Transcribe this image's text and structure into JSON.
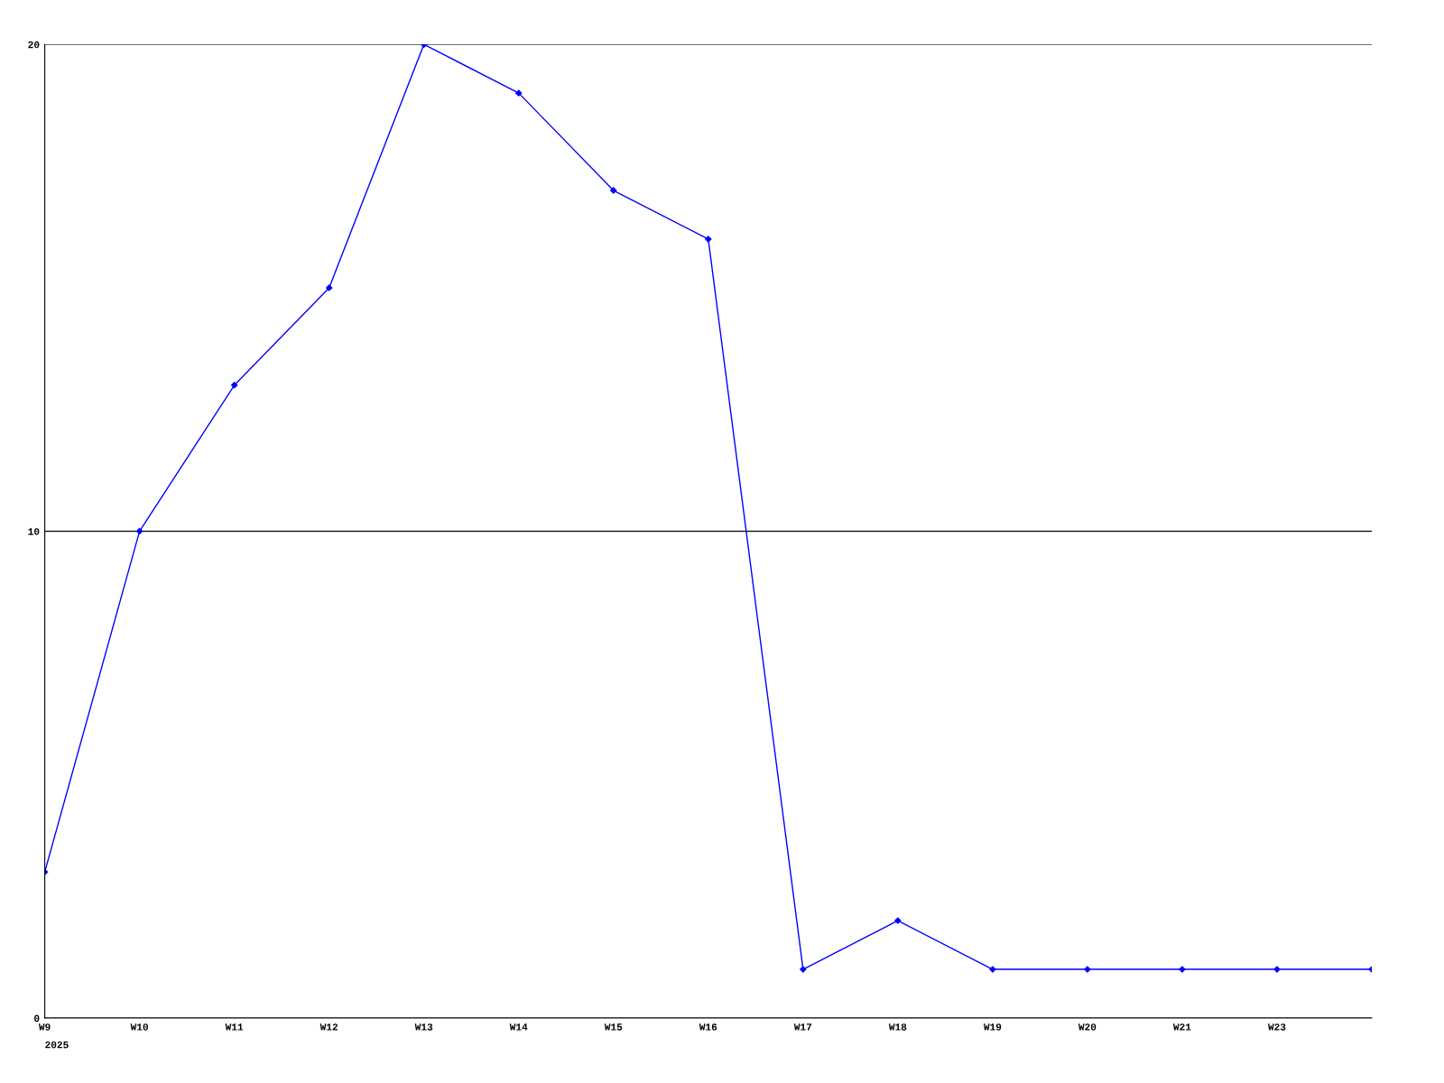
{
  "chart_data": {
    "type": "line",
    "categories": [
      "W9",
      "W10",
      "W11",
      "W12",
      "W13",
      "W14",
      "W15",
      "W16",
      "W17",
      "W18",
      "W19",
      "W20",
      "W21",
      "W23",
      null
    ],
    "series": [
      {
        "color": "#0000ff",
        "values": [
          3,
          10,
          13,
          15,
          20,
          19,
          17,
          16,
          1,
          2,
          1,
          1,
          1,
          1,
          1
        ]
      }
    ],
    "ylim": [
      0,
      20
    ],
    "yticks": [
      0,
      10,
      20
    ],
    "grid": "y",
    "marker": "diamond",
    "line_style": "solid",
    "annotations": [
      "2025"
    ]
  }
}
